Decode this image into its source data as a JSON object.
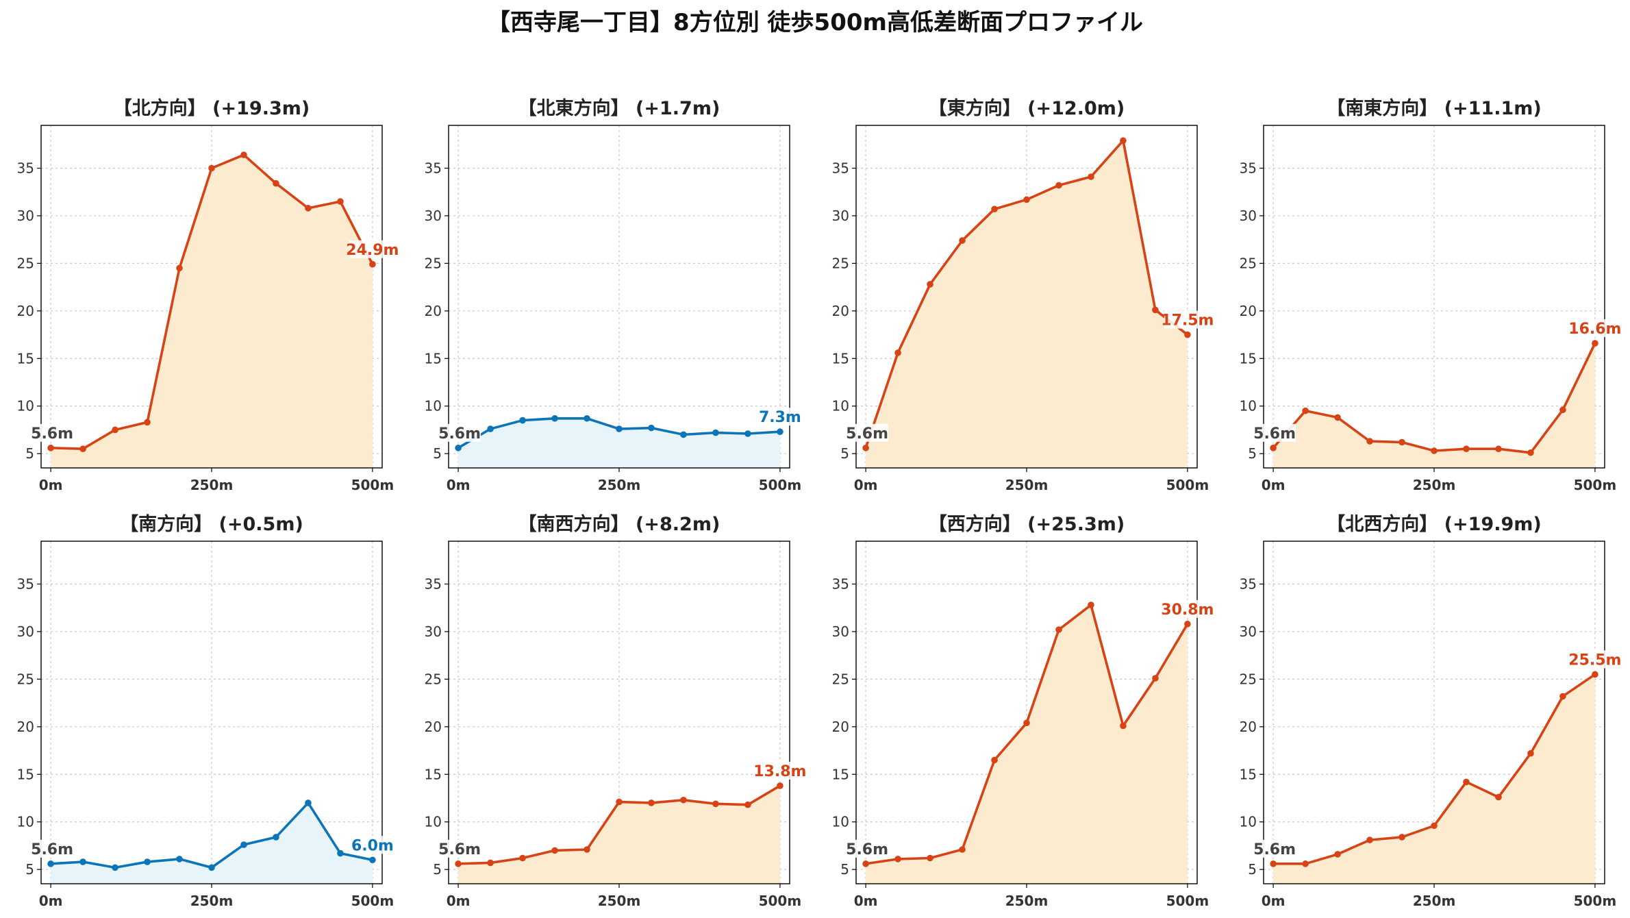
{
  "colors": {
    "up_line": "#d84315",
    "up_fill": "#fdebd0",
    "flat_line": "#0c74b8",
    "flat_fill": "#e7f5fb",
    "start_label": "#444444"
  },
  "chart_data": {
    "type": "area",
    "title": "【西寺尾一丁目】8方位別 徒歩500m高低差断面プロファイル",
    "x": [
      0,
      50,
      100,
      150,
      200,
      250,
      300,
      350,
      400,
      450,
      500
    ],
    "x_ticks": [
      0,
      250,
      500
    ],
    "x_tick_labels": [
      "0m",
      "250m",
      "500m"
    ],
    "y_ticks": [
      5,
      10,
      15,
      20,
      25,
      30,
      35
    ],
    "xlim": [
      -15,
      515
    ],
    "ylim": [
      3.5,
      39.5
    ],
    "grid": true,
    "start_label": "5.6m",
    "panels": [
      {
        "title": "【北方向】 (+19.3m)",
        "trend": "up",
        "end_label": "24.9m",
        "values": [
          5.6,
          5.5,
          7.5,
          8.3,
          24.5,
          35.0,
          36.4,
          33.4,
          30.8,
          31.5,
          24.9
        ]
      },
      {
        "title": "【北東方向】 (+1.7m)",
        "trend": "flat",
        "end_label": "7.3m",
        "values": [
          5.6,
          7.6,
          8.5,
          8.7,
          8.7,
          7.6,
          7.7,
          7.0,
          7.2,
          7.1,
          7.3
        ]
      },
      {
        "title": "【東方向】 (+12.0m)",
        "trend": "up",
        "end_label": "17.5m",
        "values": [
          5.6,
          15.6,
          22.8,
          27.4,
          30.7,
          31.7,
          33.2,
          34.1,
          37.9,
          20.1,
          17.5
        ]
      },
      {
        "title": "【南東方向】 (+11.1m)",
        "trend": "up",
        "end_label": "16.6m",
        "values": [
          5.6,
          9.5,
          8.8,
          6.3,
          6.2,
          5.3,
          5.5,
          5.5,
          5.1,
          9.6,
          16.6
        ]
      },
      {
        "title": "【南方向】 (+0.5m)",
        "trend": "flat",
        "end_label": "6.0m",
        "values": [
          5.6,
          5.8,
          5.2,
          5.8,
          6.1,
          5.2,
          7.6,
          8.4,
          12.0,
          6.7,
          6.0
        ]
      },
      {
        "title": "【南西方向】 (+8.2m)",
        "trend": "up",
        "end_label": "13.8m",
        "values": [
          5.6,
          5.7,
          6.2,
          7.0,
          7.1,
          12.1,
          12.0,
          12.3,
          11.9,
          11.8,
          13.8
        ]
      },
      {
        "title": "【西方向】 (+25.3m)",
        "trend": "up",
        "end_label": "30.8m",
        "values": [
          5.6,
          6.1,
          6.2,
          7.1,
          16.5,
          20.4,
          30.2,
          32.8,
          20.1,
          25.1,
          30.8
        ]
      },
      {
        "title": "【北西方向】 (+19.9m)",
        "trend": "up",
        "end_label": "25.5m",
        "values": [
          5.6,
          5.6,
          6.6,
          8.1,
          8.4,
          9.6,
          14.2,
          12.6,
          17.2,
          23.2,
          25.5
        ]
      }
    ]
  }
}
